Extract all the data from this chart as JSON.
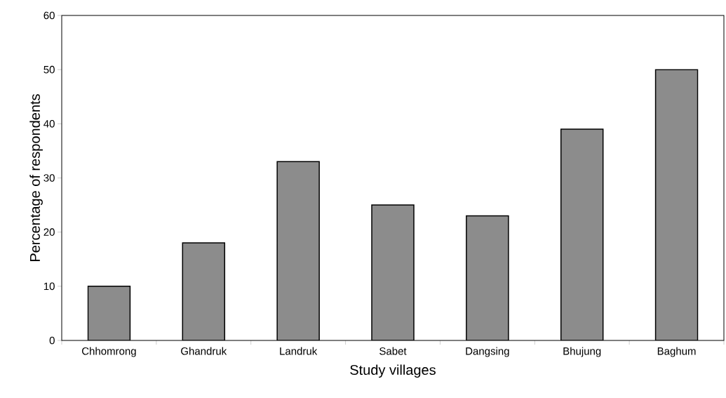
{
  "chart_data": {
    "type": "bar",
    "xlabel": "Study villages",
    "ylabel": "Percentage of respondents",
    "categories": [
      "Chhomrong",
      "Ghandruk",
      "Landruk",
      "Sabet",
      "Dangsing",
      "Bhujung",
      "Baghum"
    ],
    "values": [
      10,
      18,
      33,
      25,
      23,
      39,
      50
    ],
    "color": "#8c8c8c",
    "ylim": [
      0,
      60
    ],
    "yticks": [
      0,
      10,
      20,
      30,
      40,
      50,
      60
    ],
    "grid": false
  }
}
